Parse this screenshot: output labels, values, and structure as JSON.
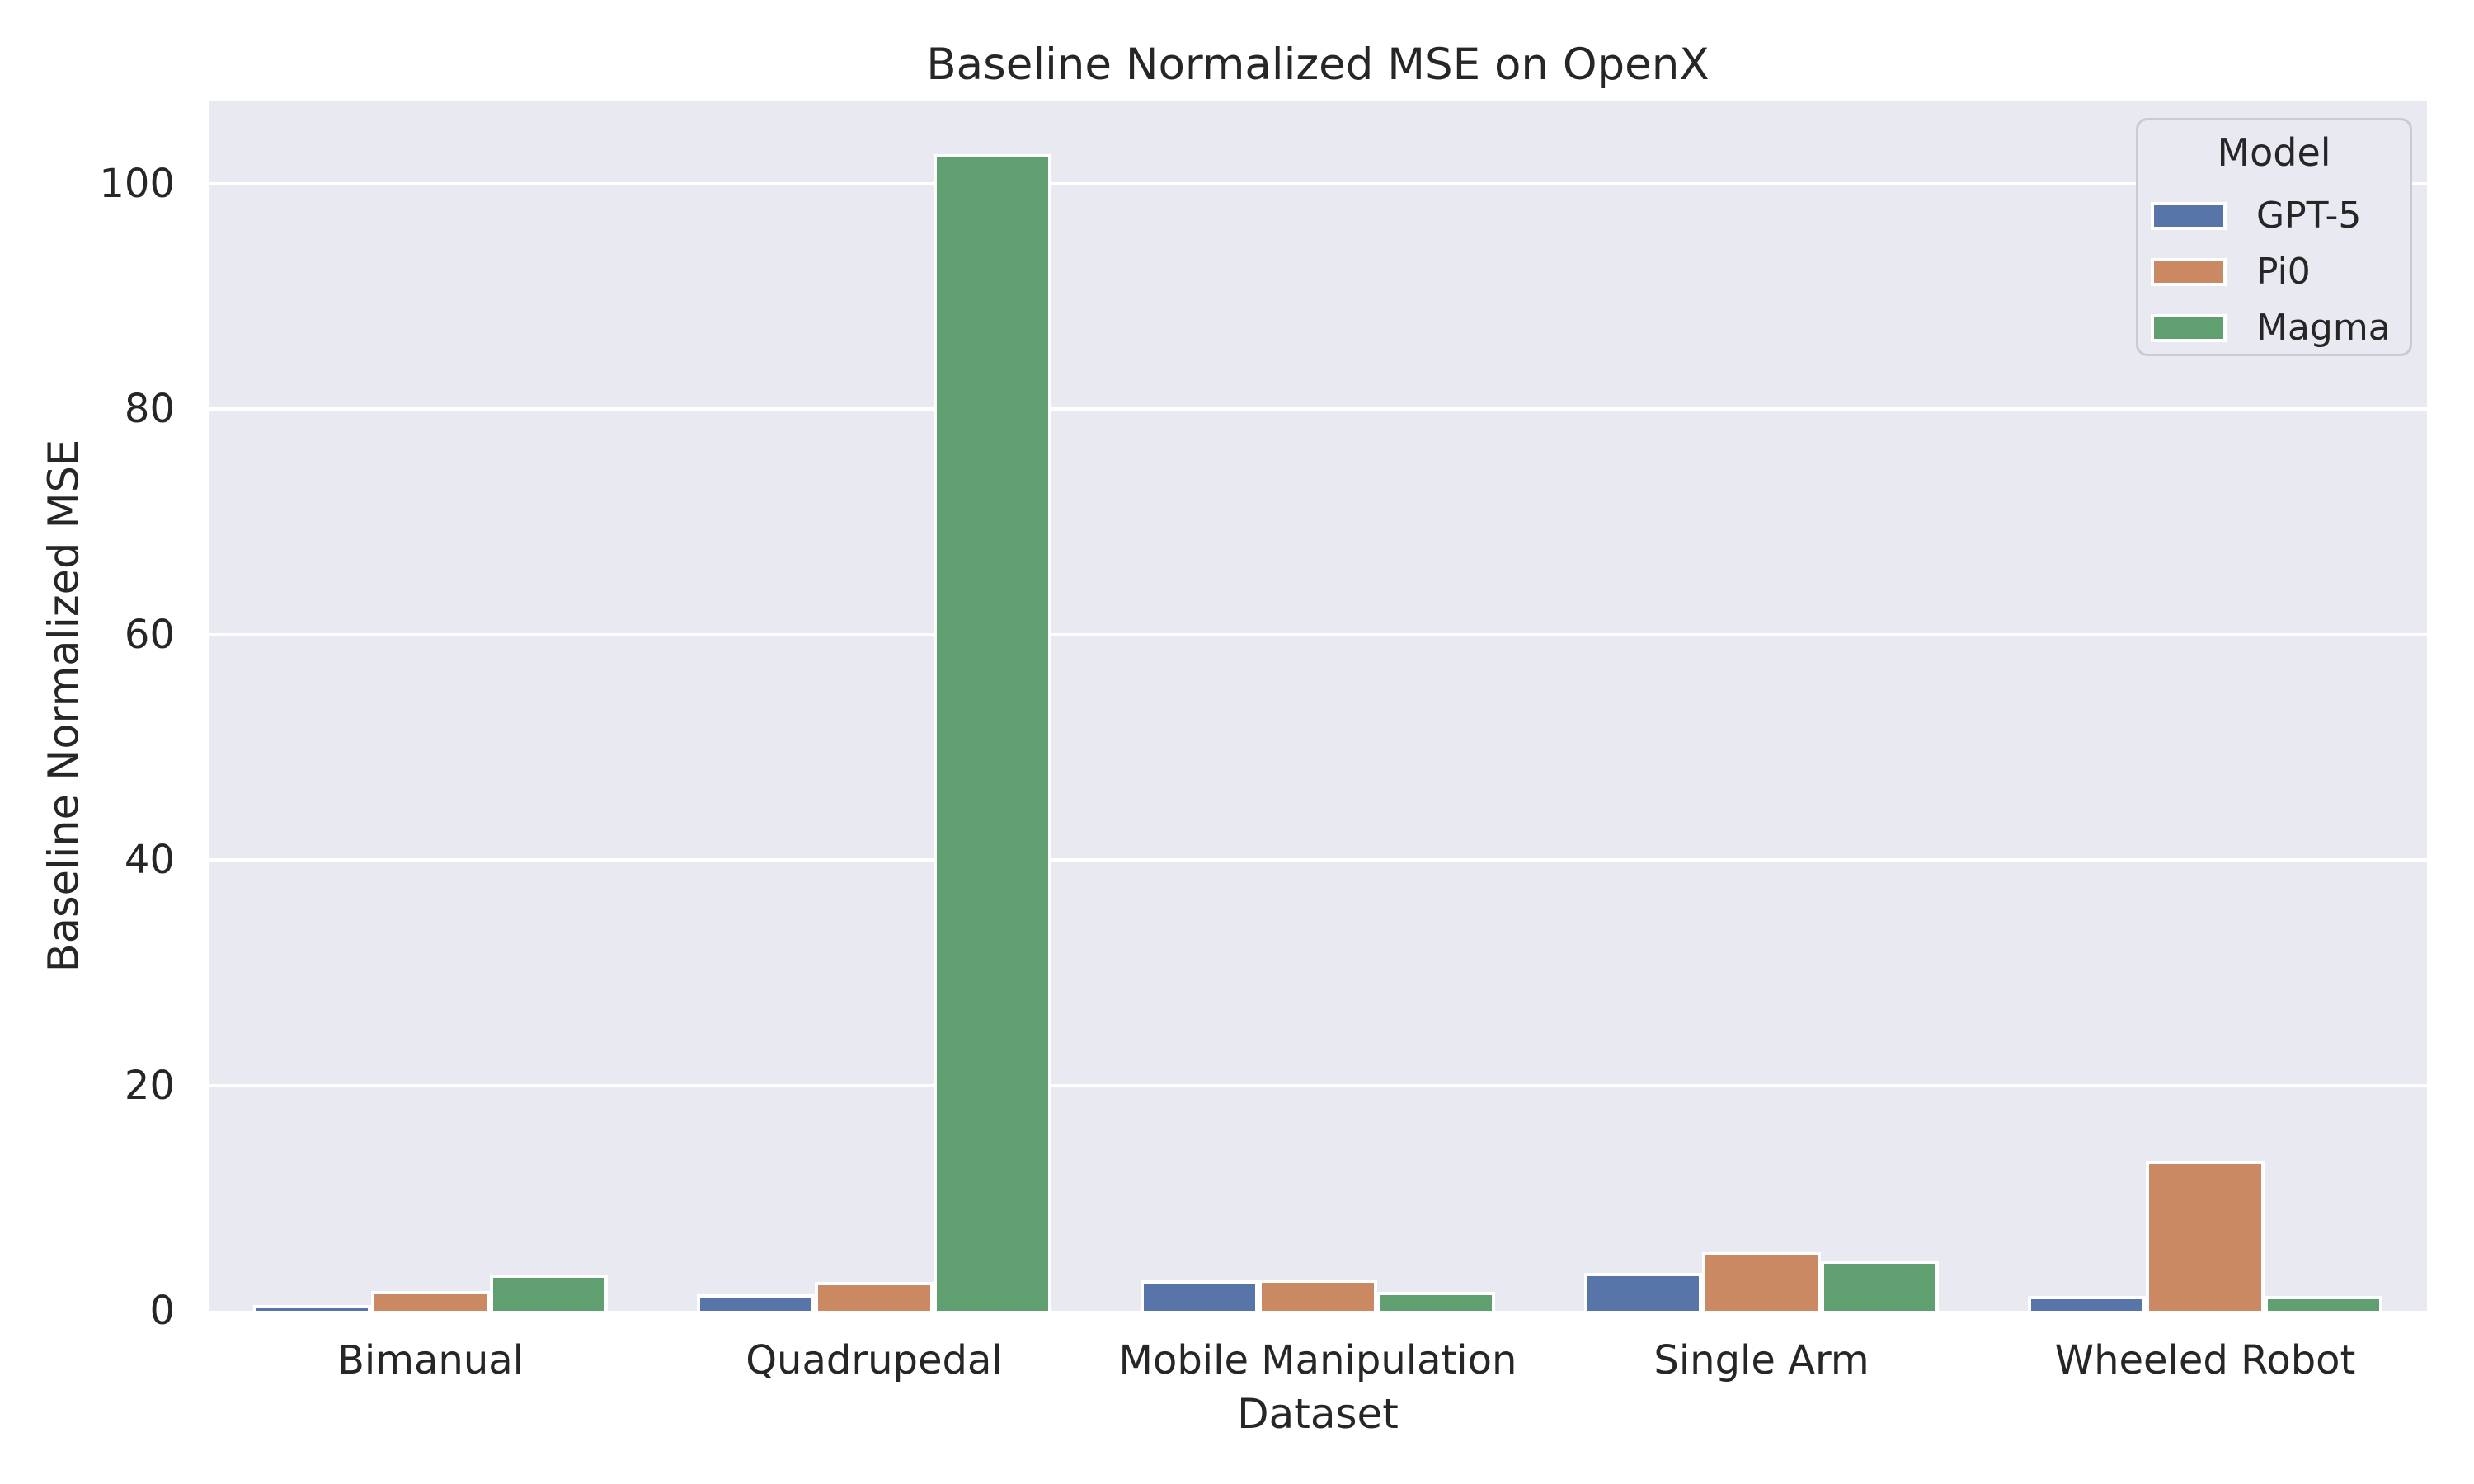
{
  "figure": {
    "title": "Baseline Normalized MSE on OpenX",
    "xlabel": "Dataset",
    "ylabel": "Baseline Normalized MSE"
  },
  "legend": {
    "title": "Model",
    "items": [
      "GPT-5",
      "Pi0",
      "Magma"
    ]
  },
  "chart_data": {
    "type": "bar",
    "title": "Baseline Normalized MSE on OpenX",
    "xlabel": "Dataset",
    "ylabel": "Baseline Normalized MSE",
    "categories": [
      "Bimanual",
      "Quadrupedal",
      "Mobile Manipulation",
      "Single Arm",
      "Wheeled Robot"
    ],
    "series": [
      {
        "name": "GPT-5",
        "color": "#5875AA",
        "values": [
          0.2,
          1.2,
          2.4,
          3.1,
          1.0
        ]
      },
      {
        "name": "Pi0",
        "color": "#CB8963",
        "values": [
          1.5,
          2.3,
          2.5,
          5.0,
          13.0
        ]
      },
      {
        "name": "Magma",
        "color": "#5F9F70",
        "values": [
          2.9,
          102.3,
          1.4,
          4.2,
          1.0
        ]
      }
    ],
    "ylim": [
      0,
      107.3
    ],
    "yticks": [
      0,
      20,
      40,
      60,
      80,
      100
    ],
    "grid": true,
    "legend_title": "Model",
    "legend_position": "upper right",
    "plot_bg": "#E9E9F1",
    "grid_color": "#FFFFFF",
    "text_color": "#262626"
  }
}
